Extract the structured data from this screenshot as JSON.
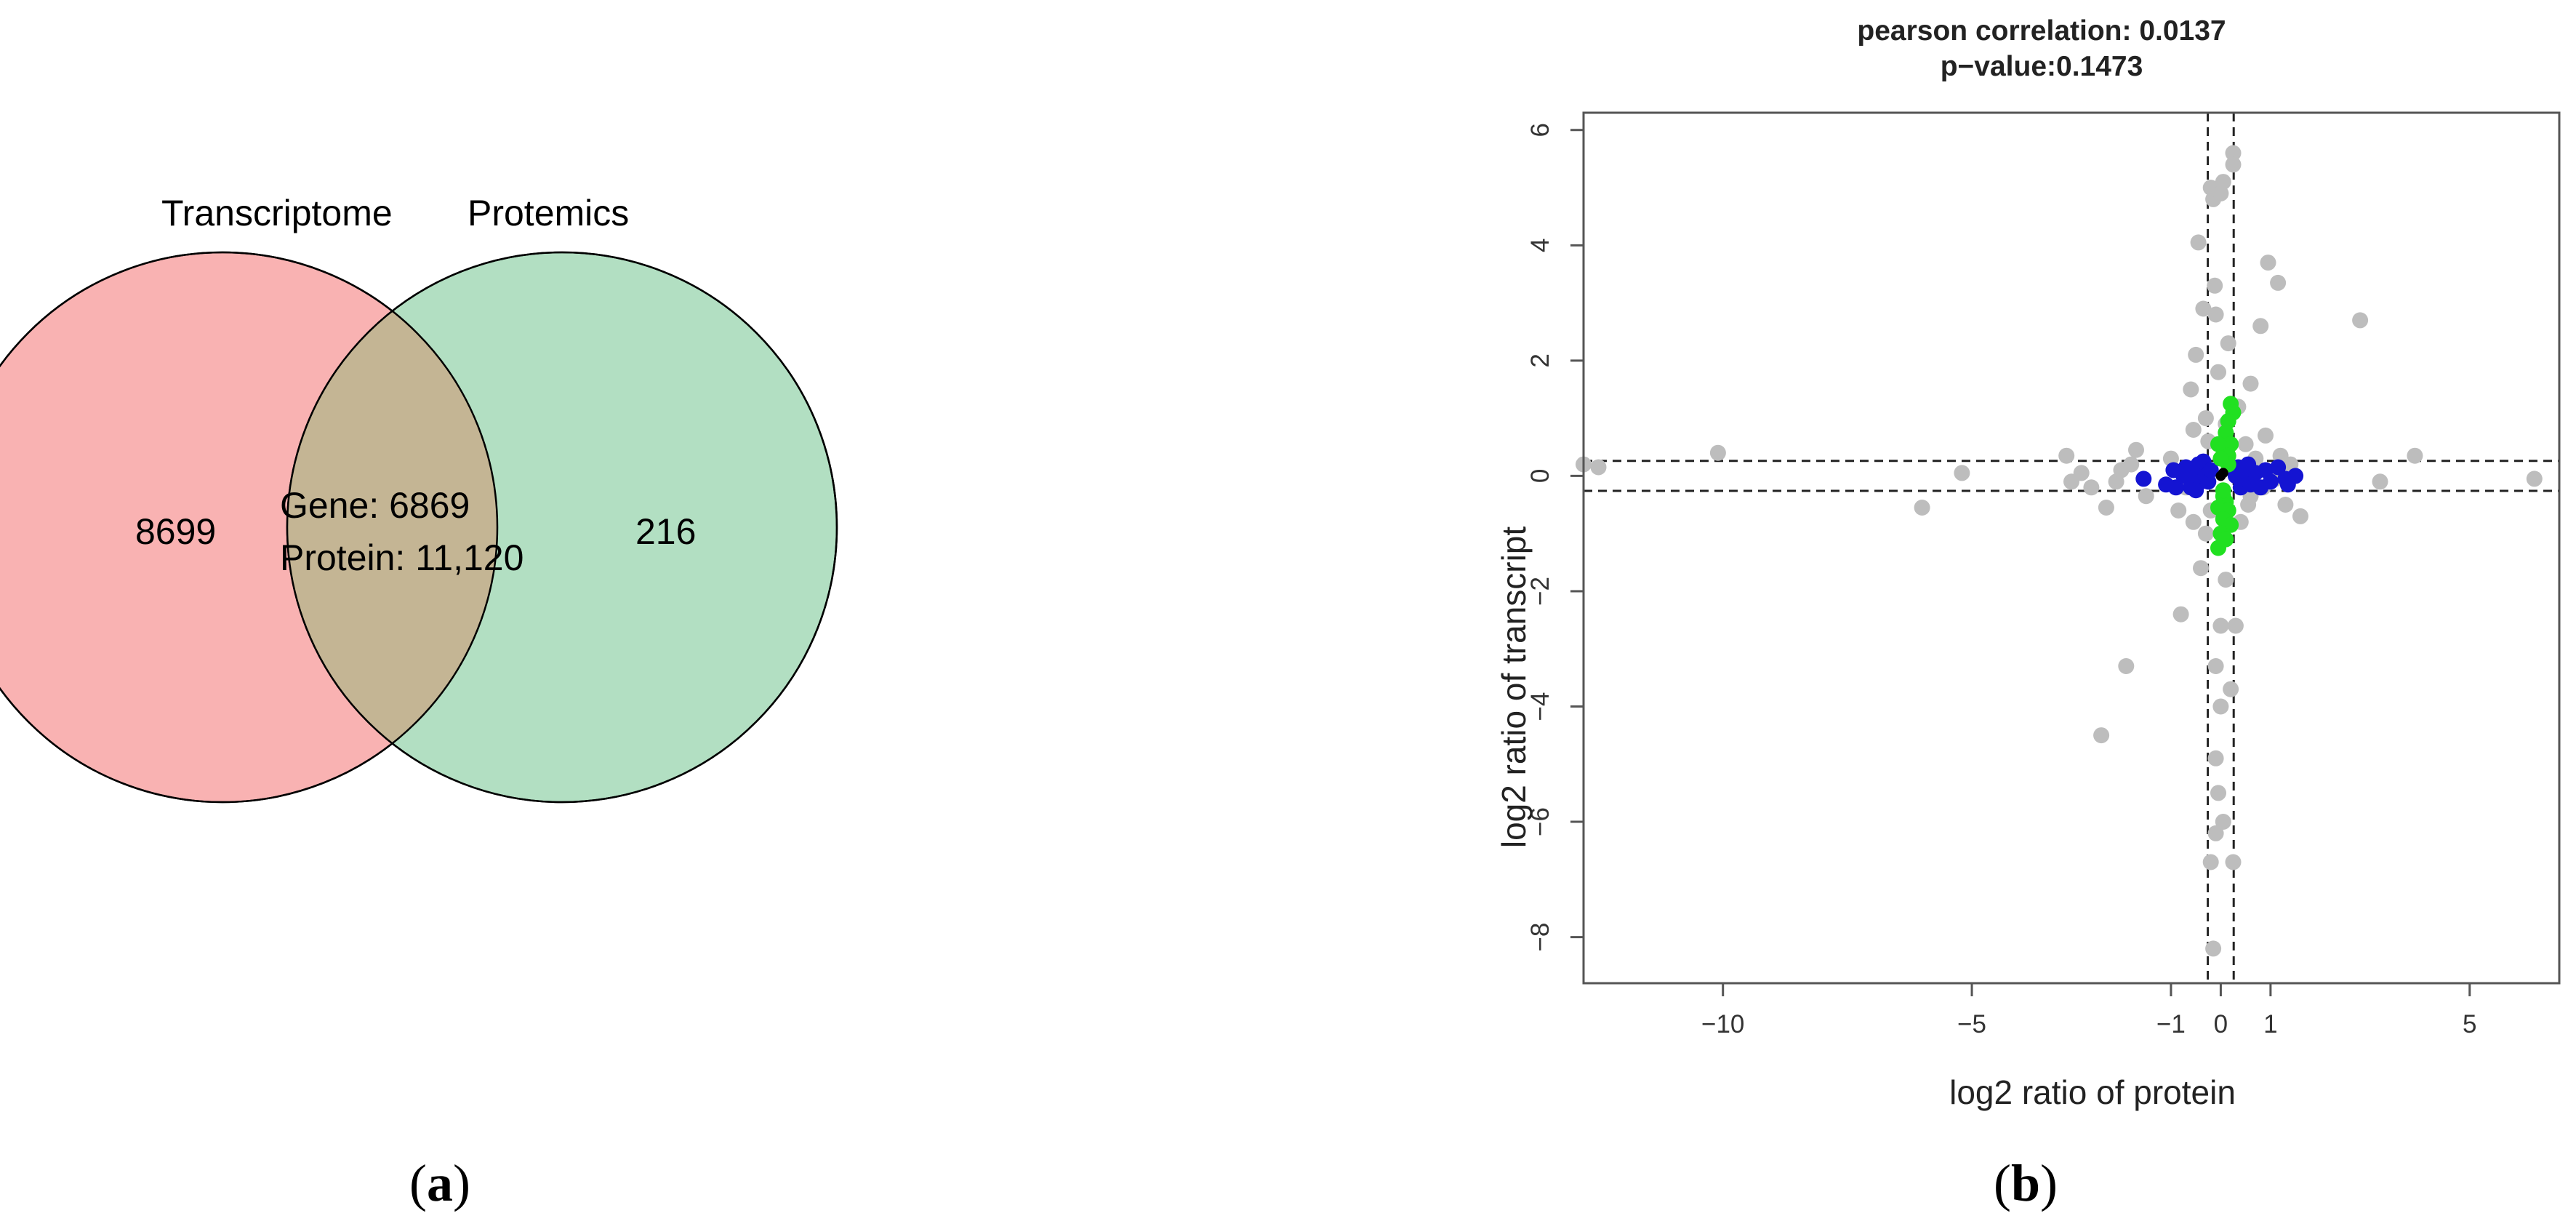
{
  "panels": {
    "a": {
      "label_open": "(",
      "label_letter": "a",
      "label_close": ")"
    },
    "b": {
      "label_open": "(",
      "label_letter": "b",
      "label_close": ")"
    }
  },
  "chart_data": [
    {
      "type": "venn",
      "sets": [
        {
          "name": "Transcriptome",
          "color": "#f9b2b2"
        },
        {
          "name": "Protemics",
          "color": "#b2dfc2"
        }
      ],
      "regions": {
        "only_transcriptome": "8699",
        "only_proteomics": "216",
        "overlap_line1": "Gene: 6869",
        "overlap_line2": "Protein: 11,120"
      },
      "overlap_color": "#c4b594"
    },
    {
      "type": "scatter",
      "title": "pearson correlation: 0.0137",
      "subtitle": "p−value:0.1473",
      "xlabel": "log2 ratio of protein",
      "ylabel": "log2 ratio of transcript",
      "xlim": [
        -12.8,
        6.8
      ],
      "ylim": [
        -8.8,
        6.3
      ],
      "xticks": [
        {
          "value": -10,
          "label": "−10"
        },
        {
          "value": -5,
          "label": "−5"
        },
        {
          "value": -1,
          "label": "−1"
        },
        {
          "value": 0,
          "label": "0"
        },
        {
          "value": 1,
          "label": "1"
        },
        {
          "value": 5,
          "label": "5"
        }
      ],
      "yticks": [
        {
          "value": 6,
          "label": "6"
        },
        {
          "value": 4,
          "label": "4"
        },
        {
          "value": 2,
          "label": "2"
        },
        {
          "value": 0,
          "label": "0"
        },
        {
          "value": -2,
          "label": "−2"
        },
        {
          "value": -4,
          "label": "−4"
        },
        {
          "value": -6,
          "label": "−6"
        },
        {
          "value": -8,
          "label": "−8"
        }
      ],
      "vlines": [
        -0.26,
        0.26
      ],
      "hlines": [
        -0.26,
        0.26
      ],
      "colors": {
        "gray": "#bdbdbd",
        "blue": "#1414d2",
        "green": "#21e021",
        "black": "#000000"
      },
      "series": [
        {
          "color_key": "gray",
          "points": [
            [
              -12.5,
              0.15
            ],
            [
              -10.1,
              0.4
            ],
            [
              -6.0,
              -0.55
            ],
            [
              -5.2,
              0.05
            ],
            [
              -3.1,
              0.35
            ],
            [
              -3.0,
              -0.1
            ],
            [
              -2.8,
              0.05
            ],
            [
              -2.6,
              -0.2
            ],
            [
              -2.4,
              -4.5
            ],
            [
              -2.3,
              -0.55
            ],
            [
              -2.1,
              -0.1
            ],
            [
              -2.0,
              0.1
            ],
            [
              -1.9,
              -3.3
            ],
            [
              -1.8,
              0.2
            ],
            [
              -1.7,
              0.45
            ],
            [
              -1.5,
              -0.35
            ],
            [
              -0.85,
              -0.6
            ],
            [
              -0.8,
              -2.4
            ],
            [
              -0.6,
              1.5
            ],
            [
              -0.55,
              0.8
            ],
            [
              -0.55,
              -0.8
            ],
            [
              -0.5,
              2.1
            ],
            [
              -0.45,
              4.05
            ],
            [
              -0.4,
              -1.6
            ],
            [
              -0.35,
              2.9
            ],
            [
              -0.3,
              1.0
            ],
            [
              -0.3,
              -1.0
            ],
            [
              -0.25,
              0.6
            ],
            [
              -0.2,
              -0.6
            ],
            [
              -0.2,
              5.0
            ],
            [
              -0.15,
              4.8
            ],
            [
              -0.12,
              3.3
            ],
            [
              -0.1,
              2.8
            ],
            [
              -0.1,
              -3.3
            ],
            [
              -0.1,
              -4.9
            ],
            [
              -0.05,
              1.8
            ],
            [
              -0.05,
              -5.5
            ],
            [
              -0.2,
              -6.7
            ],
            [
              -0.15,
              -8.2
            ],
            [
              -0.1,
              -6.2
            ],
            [
              0.0,
              4.9
            ],
            [
              0.0,
              -4.0
            ],
            [
              0.0,
              -2.6
            ],
            [
              0.05,
              5.1
            ],
            [
              0.05,
              -6.0
            ],
            [
              0.1,
              0.9
            ],
            [
              0.1,
              -1.8
            ],
            [
              0.15,
              2.3
            ],
            [
              0.2,
              -3.7
            ],
            [
              0.25,
              5.6
            ],
            [
              0.25,
              5.4
            ],
            [
              0.25,
              -6.7
            ],
            [
              0.3,
              -2.6
            ],
            [
              0.35,
              1.2
            ],
            [
              0.4,
              -0.8
            ],
            [
              0.5,
              0.55
            ],
            [
              0.55,
              -0.5
            ],
            [
              0.6,
              1.6
            ],
            [
              0.7,
              0.3
            ],
            [
              0.8,
              2.6
            ],
            [
              0.85,
              -0.2
            ],
            [
              0.9,
              0.7
            ],
            [
              0.95,
              3.7
            ],
            [
              1.1,
              -0.05
            ],
            [
              1.15,
              3.35
            ],
            [
              1.2,
              0.35
            ],
            [
              1.3,
              -0.5
            ],
            [
              1.4,
              0.2
            ],
            [
              1.6,
              -0.7
            ],
            [
              2.8,
              2.7
            ],
            [
              3.2,
              -0.1
            ],
            [
              3.9,
              0.35
            ],
            [
              6.3,
              -0.05
            ],
            [
              -1.0,
              0.3
            ],
            [
              -0.7,
              -0.2
            ],
            [
              0.6,
              -0.35
            ],
            [
              -12.8,
              0.2
            ]
          ]
        },
        {
          "color_key": "blue",
          "points": [
            [
              -1.55,
              -0.05
            ],
            [
              -1.1,
              -0.15
            ],
            [
              -0.95,
              0.1
            ],
            [
              -0.9,
              -0.2
            ],
            [
              -0.75,
              0.0
            ],
            [
              -0.7,
              0.15
            ],
            [
              -0.6,
              -0.2
            ],
            [
              -0.55,
              0.05
            ],
            [
              -0.45,
              0.2
            ],
            [
              -0.4,
              -0.1
            ],
            [
              -0.35,
              0.25
            ],
            [
              -0.3,
              0.0
            ],
            [
              0.4,
              -0.2
            ],
            [
              0.45,
              0.1
            ],
            [
              0.5,
              -0.05
            ],
            [
              0.55,
              0.2
            ],
            [
              0.6,
              -0.15
            ],
            [
              0.7,
              0.05
            ],
            [
              0.8,
              -0.2
            ],
            [
              0.9,
              0.1
            ],
            [
              1.0,
              -0.1
            ],
            [
              1.15,
              0.15
            ],
            [
              1.3,
              -0.05
            ],
            [
              1.35,
              -0.15
            ],
            [
              -0.25,
              -0.1
            ],
            [
              0.35,
              0.15
            ],
            [
              -0.5,
              -0.25
            ],
            [
              1.5,
              0.0
            ],
            [
              -0.2,
              0.1
            ],
            [
              0.3,
              0.0
            ]
          ]
        },
        {
          "color_key": "green",
          "points": [
            [
              0.2,
              1.25
            ],
            [
              0.25,
              1.1
            ],
            [
              0.15,
              0.95
            ],
            [
              0.1,
              0.75
            ],
            [
              0.2,
              0.55
            ],
            [
              0.1,
              0.45
            ],
            [
              0.15,
              0.35
            ],
            [
              -0.05,
              0.55
            ],
            [
              0.05,
              -0.35
            ],
            [
              0.1,
              -0.45
            ],
            [
              -0.05,
              -0.55
            ],
            [
              0.15,
              -0.6
            ],
            [
              0.05,
              -0.75
            ],
            [
              0.2,
              -0.85
            ],
            [
              0.0,
              -1.0
            ],
            [
              0.1,
              -1.1
            ],
            [
              -0.05,
              -1.25
            ],
            [
              0.15,
              0.2
            ],
            [
              0.0,
              0.3
            ],
            [
              0.05,
              -0.25
            ]
          ]
        },
        {
          "color_key": "black",
          "points": [
            [
              0.0,
              0.0
            ],
            [
              0.05,
              0.05
            ]
          ]
        }
      ]
    }
  ]
}
